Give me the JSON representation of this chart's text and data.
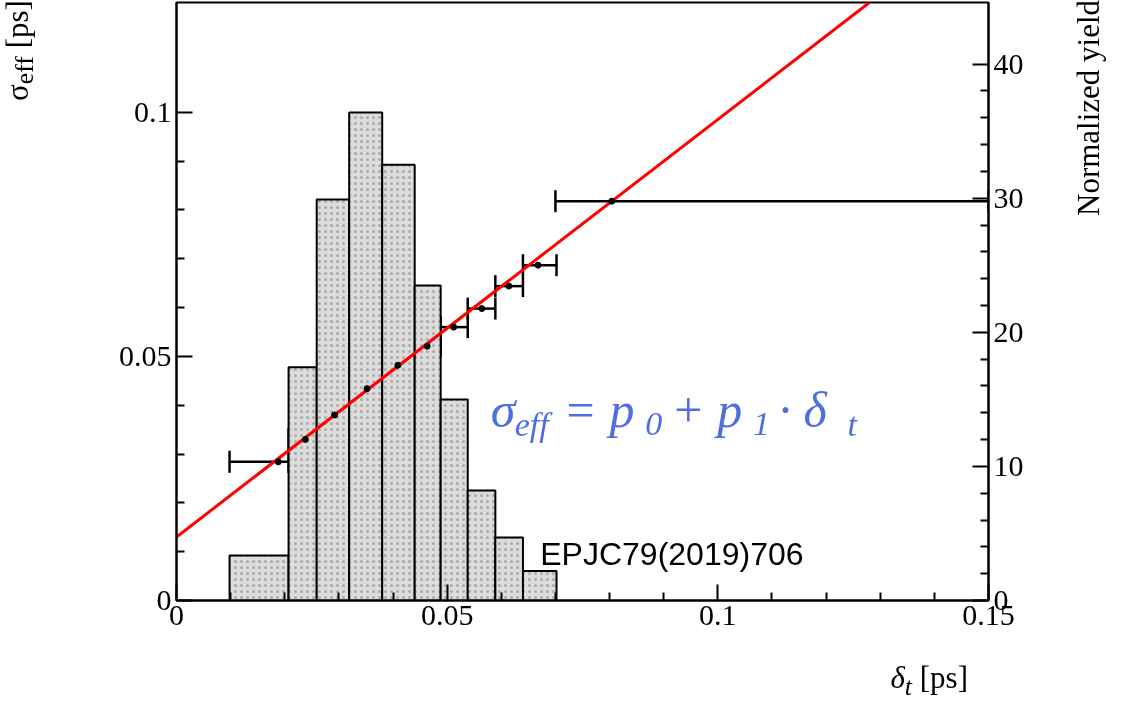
{
  "chart_data": {
    "type": "scatter",
    "xlabel": "δ$_{t}$ [ps]",
    "ylabel": "σ$_{eff}$ [ps]",
    "y2label": "Normalized yield",
    "xlim": [
      0,
      0.15
    ],
    "xticks": [
      0,
      0.05,
      0.1,
      0.15
    ],
    "ylim": [
      0,
      0.1225
    ],
    "yticks": [
      0,
      0.05,
      0.1
    ],
    "y2lim": [
      0,
      44.6
    ],
    "y2ticks": [
      0,
      10,
      20,
      30,
      40
    ],
    "annotations": [
      "σ$_{eff}$ = p$_{0}$ + p$_{1}$ · δ$_{t}$",
      "EPJC79(2019)706"
    ],
    "series": [
      {
        "type": "histogram",
        "axis": "y2",
        "color": "#dcdcdc",
        "bins": [
          0.0098,
          0.0207,
          0.0259,
          0.0319,
          0.038,
          0.044,
          0.0488,
          0.0538,
          0.0589,
          0.064,
          0.0702
        ],
        "values": [
          3.35,
          17.4,
          29.9,
          36.4,
          32.5,
          23.5,
          15.0,
          8.2,
          4.7,
          2.2
        ]
      },
      {
        "type": "line",
        "color": "#ff0000",
        "x": [
          0,
          0.128
        ],
        "values": [
          0.013,
          0.1225
        ]
      },
      {
        "marker": "circle",
        "color": "#000000",
        "x": [
          0.0188,
          0.0238,
          0.0292,
          0.0352,
          0.0409,
          0.0463,
          0.0512,
          0.0564,
          0.0614,
          0.0668,
          0.0804
        ],
        "values": [
          0.0284,
          0.033,
          0.038,
          0.0434,
          0.0482,
          0.0521,
          0.056,
          0.0598,
          0.0644,
          0.0687,
          0.0818
        ],
        "xerrors": [
          [
            0.0098,
            0.0207
          ],
          [
            0.0207,
            0.0259
          ],
          [
            0.0259,
            0.0319
          ],
          [
            0.0318,
            0.038
          ],
          [
            0.038,
            0.044
          ],
          [
            0.044,
            0.0488
          ],
          [
            0.0488,
            0.0538
          ],
          [
            0.0538,
            0.0589
          ],
          [
            0.0589,
            0.064
          ],
          [
            0.064,
            0.0702
          ],
          [
            0.07,
            0.15
          ]
        ]
      }
    ]
  }
}
